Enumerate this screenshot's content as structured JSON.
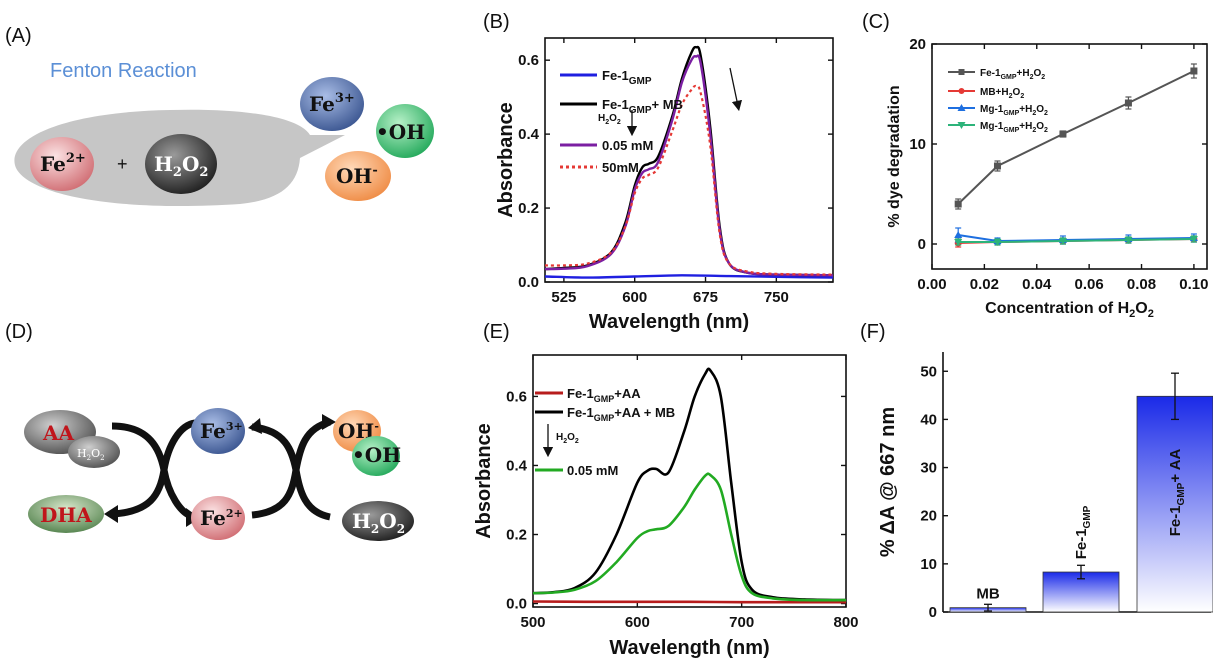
{
  "panels": {
    "a": "(A)",
    "b": "(B)",
    "c": "(C)",
    "d": "(D)",
    "e": "(E)",
    "f": "(F)"
  },
  "scheme_a": {
    "title": "Fenton Reaction",
    "fe2": "Fe",
    "fe2_sup": "2+",
    "plus": "+",
    "h2o2": "H",
    "h2o2_sub": "2",
    "h2o2_o": "O",
    "h2o2_sub2": "2",
    "fe3": "Fe",
    "fe3_sup": "3+",
    "oh_rad": "•OH",
    "oh_minus": "OH",
    "oh_minus_sup": "-",
    "colors": {
      "bubble": "#c6c6c6",
      "fe2": "#d87b80",
      "h2o2": "#3b3b3b",
      "fe3": "#4d6aa0",
      "oh_rad": "#3fbf6f",
      "oh_minus": "#f39c5a",
      "title": "#5b8fd6"
    }
  },
  "scheme_d": {
    "aa": "AA",
    "h2o2_small": "H",
    "h2o2_small_sub": "2",
    "h2o2_small_o": "O",
    "h2o2_small_sub2": "2",
    "dha": "DHA",
    "fe3": "Fe",
    "fe3_sup": "3+",
    "fe2": "Fe",
    "fe2_sup": "2+",
    "oh_minus": "OH",
    "oh_minus_sup": "-",
    "oh_rad": "•OH",
    "h2o2": "H",
    "h2o2_sub": "2",
    "h2o2_o": "O",
    "h2o2_sub2": "2",
    "colors": {
      "aa": "#555555",
      "aa_text": "#c0151b",
      "dha": "#5f8f5a",
      "dha_text": "#c0151b",
      "arrow": "#111111"
    }
  },
  "chart_data": [
    {
      "id": "B",
      "type": "line",
      "xlabel": "Wavelength (nm)",
      "ylabel": "Absorbance",
      "xlim": [
        505,
        810
      ],
      "ylim": [
        0,
        0.66
      ],
      "xticks": [
        525,
        600,
        675,
        750
      ],
      "yticks": [
        0.0,
        0.2,
        0.4,
        0.6
      ],
      "series": [
        {
          "name": "Fe-1",
          "name_sub": "GMP",
          "color": "#1f1fe0",
          "dash": "",
          "x": [
            505,
            550,
            600,
            650,
            700,
            750,
            810
          ],
          "y": [
            0.015,
            0.012,
            0.015,
            0.018,
            0.016,
            0.014,
            0.012
          ]
        },
        {
          "name": "Fe-1",
          "name_sub": "GMP",
          "name_tail": "+ MB",
          "color": "#000000",
          "dash": "",
          "x": [
            505,
            525,
            550,
            575,
            590,
            600,
            608,
            615,
            625,
            640,
            650,
            660,
            665,
            670,
            680,
            690,
            700,
            720,
            750,
            810
          ],
          "y": [
            0.035,
            0.038,
            0.045,
            0.08,
            0.16,
            0.26,
            0.31,
            0.32,
            0.34,
            0.45,
            0.55,
            0.62,
            0.635,
            0.61,
            0.42,
            0.15,
            0.05,
            0.025,
            0.02,
            0.018
          ]
        },
        {
          "name": "0.05 mM",
          "color": "#7b1fa2",
          "dash": "",
          "x": [
            505,
            525,
            550,
            575,
            590,
            600,
            608,
            615,
            625,
            640,
            650,
            660,
            665,
            670,
            680,
            690,
            700,
            720,
            750,
            810
          ],
          "y": [
            0.035,
            0.036,
            0.043,
            0.076,
            0.15,
            0.25,
            0.295,
            0.305,
            0.325,
            0.44,
            0.54,
            0.6,
            0.61,
            0.59,
            0.4,
            0.14,
            0.05,
            0.025,
            0.02,
            0.018
          ]
        },
        {
          "name": "50mM",
          "color": "#e53935",
          "dash": "3,3",
          "x": [
            505,
            525,
            550,
            575,
            590,
            600,
            608,
            615,
            625,
            640,
            650,
            660,
            665,
            670,
            680,
            690,
            700,
            720,
            750,
            810
          ],
          "y": [
            0.045,
            0.045,
            0.05,
            0.08,
            0.15,
            0.24,
            0.28,
            0.29,
            0.31,
            0.41,
            0.48,
            0.52,
            0.53,
            0.51,
            0.37,
            0.13,
            0.05,
            0.028,
            0.022,
            0.02
          ]
        }
      ],
      "annotation": {
        "h2o2": "H",
        "h2o2_sub": "2",
        "h2o2_o": "O",
        "h2o2_sub2": "2"
      }
    },
    {
      "id": "C",
      "type": "line",
      "xlabel": "Concentration of H",
      "xlabel_sub": "2",
      "xlabel_o": "O",
      "xlabel_sub2": "2",
      "ylabel": "% dye degradation",
      "xlim": [
        0,
        0.105
      ],
      "ylim": [
        -2.5,
        20
      ],
      "xticks": [
        0.0,
        0.02,
        0.04,
        0.06,
        0.08,
        0.1
      ],
      "xtick_labels": [
        "0.00",
        "0.02",
        "0.04",
        "0.06",
        "0.08",
        "0.10"
      ],
      "yticks": [
        0,
        10,
        20
      ],
      "series": [
        {
          "name": "Fe-1",
          "name_sub": "GMP",
          "name_tail": "+H",
          "tail_sub": "2",
          "tail_o": "O",
          "tail_sub2": "2",
          "color": "#555555",
          "marker": "square",
          "x": [
            0.01,
            0.025,
            0.05,
            0.075,
            0.1
          ],
          "y": [
            4.0,
            7.8,
            11.0,
            14.1,
            17.3
          ],
          "err": [
            0.5,
            0.5,
            0.3,
            0.6,
            0.7
          ]
        },
        {
          "name": "MB+H",
          "name_sub": "2",
          "name_o": "O",
          "name_sub2": "2",
          "color": "#e53935",
          "marker": "circle",
          "x": [
            0.01,
            0.025,
            0.05,
            0.075,
            0.1
          ],
          "y": [
            0.1,
            0.2,
            0.3,
            0.4,
            0.5
          ],
          "err": [
            0.4,
            0.3,
            0.3,
            0.3,
            0.3
          ]
        },
        {
          "name": "Mg-1",
          "name_sub": "GMP",
          "name_tail": "+H",
          "tail_sub": "2",
          "tail_o": "O",
          "tail_sub2": "2",
          "color": "#1e6fe0",
          "marker": "triangle",
          "x": [
            0.01,
            0.025,
            0.05,
            0.075,
            0.1
          ],
          "y": [
            0.9,
            0.3,
            0.4,
            0.5,
            0.6
          ],
          "err": [
            0.7,
            0.3,
            0.4,
            0.4,
            0.4
          ]
        },
        {
          "name": "Mg-1",
          "name_sub": "GMP",
          "name_tail": "+H",
          "tail_sub": "2",
          "tail_o": "O",
          "tail_sub2": "2",
          "color": "#2db37a",
          "marker": "triangle-down",
          "x": [
            0.01,
            0.025,
            0.05,
            0.075,
            0.1
          ],
          "y": [
            0.2,
            0.2,
            0.3,
            0.4,
            0.5
          ],
          "err": [
            0.3,
            0.3,
            0.3,
            0.3,
            0.3
          ]
        }
      ]
    },
    {
      "id": "E",
      "type": "line",
      "xlabel": "Wavelength (nm)",
      "ylabel": "Absorbance",
      "xlim": [
        500,
        800
      ],
      "ylim": [
        -0.01,
        0.72
      ],
      "xticks": [
        500,
        600,
        700,
        800
      ],
      "yticks": [
        0.0,
        0.2,
        0.4,
        0.6
      ],
      "series": [
        {
          "name": "Fe-1",
          "name_sub": "GMP",
          "name_tail": "+AA",
          "color": "#b71c1c",
          "x": [
            500,
            550,
            600,
            650,
            700,
            750,
            800
          ],
          "y": [
            0.006,
            0.005,
            0.005,
            0.005,
            0.004,
            0.004,
            0.004
          ]
        },
        {
          "name": "Fe-1",
          "name_sub": "GMP",
          "name_tail": "+AA + MB",
          "color": "#000000",
          "x": [
            500,
            520,
            540,
            560,
            580,
            600,
            610,
            618,
            630,
            645,
            655,
            665,
            670,
            680,
            690,
            700,
            710,
            730,
            760,
            800
          ],
          "y": [
            0.03,
            0.033,
            0.045,
            0.09,
            0.2,
            0.35,
            0.385,
            0.39,
            0.38,
            0.5,
            0.6,
            0.665,
            0.675,
            0.6,
            0.35,
            0.12,
            0.04,
            0.018,
            0.012,
            0.01
          ]
        },
        {
          "name": "0.05 mM",
          "color": "#22aa22",
          "x": [
            500,
            520,
            540,
            560,
            580,
            600,
            610,
            618,
            630,
            645,
            655,
            665,
            670,
            680,
            690,
            700,
            710,
            730,
            760,
            800
          ],
          "y": [
            0.03,
            0.032,
            0.04,
            0.065,
            0.12,
            0.19,
            0.21,
            0.215,
            0.225,
            0.28,
            0.33,
            0.37,
            0.372,
            0.33,
            0.2,
            0.08,
            0.03,
            0.015,
            0.01,
            0.01
          ]
        }
      ],
      "annotation": {
        "h2o2": "H",
        "h2o2_sub": "2",
        "h2o2_o": "O",
        "h2o2_sub2": "2"
      }
    },
    {
      "id": "F",
      "type": "bar",
      "ylabel": "% ΔA @ 667 nm",
      "ylim": [
        0,
        54
      ],
      "yticks": [
        0,
        10,
        20,
        30,
        40,
        50
      ],
      "categories": [
        {
          "label": "MB",
          "sub": "",
          "tail": ""
        },
        {
          "label": "Fe-1",
          "sub": "GMP",
          "tail": ""
        },
        {
          "label": "Fe-1",
          "sub": "GMP",
          "tail": "+ AA"
        }
      ],
      "values": [
        0.9,
        8.3,
        44.8
      ],
      "err": [
        0.7,
        1.4,
        4.8
      ],
      "color": "#2233ee"
    }
  ]
}
